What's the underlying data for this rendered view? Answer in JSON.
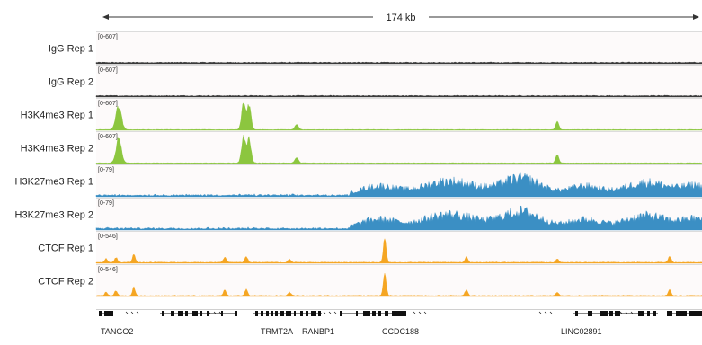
{
  "scale": {
    "label": "174 kb"
  },
  "tracks": [
    {
      "name": "IgG Rep 1",
      "range": "[0-607]",
      "color": "#3a3a3a",
      "profile": "flat"
    },
    {
      "name": "IgG Rep 2",
      "range": "[0-607]",
      "color": "#3a3a3a",
      "profile": "flat"
    },
    {
      "name": "H3K4me3 Rep 1",
      "range": "[0-607]",
      "color": "#8cc63f",
      "profile": "peaks_h3k4"
    },
    {
      "name": "H3K4me3 Rep 2",
      "range": "[0-607]",
      "color": "#8cc63f",
      "profile": "peaks_h3k4"
    },
    {
      "name": "H3K27me3 Rep 1",
      "range": "[0-79]",
      "color": "#3b8fc4",
      "profile": "broad"
    },
    {
      "name": "H3K27me3 Rep 2",
      "range": "[0-79]",
      "color": "#3b8fc4",
      "profile": "broad"
    },
    {
      "name": "CTCF Rep 1",
      "range": "[0-546]",
      "color": "#f5a623",
      "profile": "peaks_ctcf"
    },
    {
      "name": "CTCF Rep 2",
      "range": "[0-546]",
      "color": "#f5a623",
      "profile": "peaks_ctcf"
    }
  ],
  "genes": [
    "TANGO2",
    "TRMT2A",
    "RANBP1",
    "CCDC188",
    "LINC02891"
  ]
}
